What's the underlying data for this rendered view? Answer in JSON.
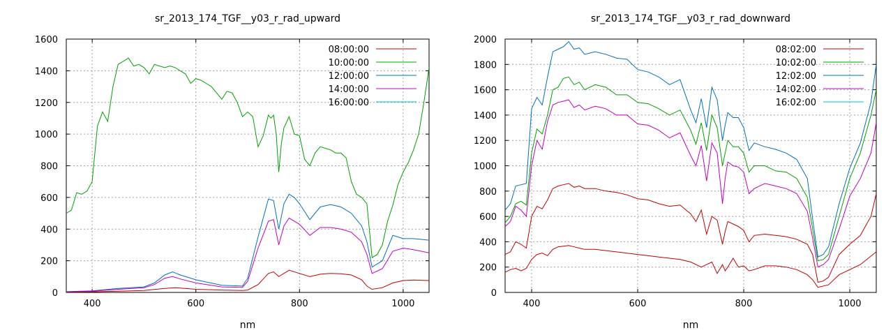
{
  "chart_data": [
    {
      "type": "line",
      "title": "sr_2013_174_TGF__y03_r_rad_upward",
      "xlabel": "nm",
      "ylabel": "",
      "xlim": [
        350,
        1050
      ],
      "ylim": [
        0,
        1600
      ],
      "xticks": [
        400,
        600,
        800,
        1000
      ],
      "yticks": [
        0,
        200,
        400,
        600,
        800,
        1000,
        1200,
        1400,
        1600
      ],
      "grid": true,
      "legend": "top-right",
      "series": [
        {
          "name": "08:00:00",
          "color": "#c00000",
          "x": [
            350,
            400,
            450,
            500,
            540,
            560,
            600,
            650,
            690,
            700,
            720,
            740,
            750,
            760,
            780,
            800,
            820,
            840,
            860,
            880,
            900,
            920,
            930,
            940,
            960,
            980,
            1000,
            1020,
            1050
          ],
          "y": [
            3,
            4,
            8,
            12,
            25,
            30,
            20,
            15,
            12,
            15,
            50,
            120,
            130,
            100,
            140,
            120,
            100,
            115,
            120,
            118,
            110,
            80,
            40,
            20,
            30,
            60,
            75,
            78,
            75
          ]
        },
        {
          "name": "10:00:00",
          "color": "#00a000",
          "x": [
            350,
            360,
            370,
            380,
            390,
            400,
            410,
            420,
            430,
            440,
            450,
            460,
            470,
            480,
            490,
            500,
            510,
            520,
            530,
            540,
            550,
            560,
            570,
            580,
            590,
            600,
            610,
            620,
            630,
            640,
            650,
            660,
            670,
            680,
            690,
            700,
            710,
            720,
            730,
            740,
            745,
            750,
            755,
            760,
            765,
            770,
            780,
            790,
            800,
            810,
            820,
            830,
            840,
            850,
            860,
            870,
            880,
            890,
            900,
            910,
            920,
            930,
            940,
            950,
            960,
            970,
            980,
            990,
            1000,
            1010,
            1020,
            1030,
            1040,
            1050
          ],
          "y": [
            500,
            520,
            630,
            620,
            640,
            700,
            1050,
            1140,
            1080,
            1300,
            1440,
            1460,
            1480,
            1430,
            1440,
            1420,
            1380,
            1440,
            1430,
            1420,
            1430,
            1420,
            1400,
            1380,
            1320,
            1350,
            1340,
            1320,
            1300,
            1260,
            1220,
            1270,
            1260,
            1200,
            1110,
            1140,
            1110,
            920,
            990,
            1120,
            1100,
            1120,
            1000,
            760,
            940,
            1040,
            1110,
            1000,
            990,
            840,
            800,
            880,
            920,
            910,
            900,
            880,
            880,
            850,
            700,
            620,
            600,
            560,
            220,
            240,
            300,
            450,
            550,
            680,
            760,
            820,
            900,
            1000,
            1200,
            1420
          ]
        },
        {
          "name": "12:00:00",
          "color": "#0070c0",
          "x": [
            350,
            400,
            450,
            500,
            520,
            540,
            555,
            570,
            600,
            650,
            690,
            700,
            720,
            740,
            750,
            760,
            770,
            780,
            790,
            800,
            820,
            840,
            860,
            880,
            900,
            920,
            930,
            940,
            960,
            980,
            1000,
            1020,
            1050
          ],
          "y": [
            5,
            10,
            25,
            35,
            60,
            110,
            130,
            110,
            80,
            45,
            40,
            90,
            350,
            590,
            580,
            400,
            560,
            620,
            600,
            560,
            460,
            540,
            555,
            540,
            500,
            420,
            320,
            160,
            200,
            360,
            340,
            340,
            330
          ]
        },
        {
          "name": "14:00:00",
          "color": "#c000c0",
          "x": [
            350,
            400,
            450,
            500,
            520,
            540,
            555,
            570,
            600,
            650,
            690,
            700,
            720,
            740,
            750,
            760,
            770,
            780,
            790,
            800,
            820,
            840,
            860,
            880,
            900,
            920,
            930,
            940,
            960,
            980,
            1000,
            1020,
            1050
          ],
          "y": [
            4,
            8,
            20,
            30,
            50,
            90,
            100,
            85,
            60,
            35,
            32,
            70,
            280,
            450,
            460,
            300,
            420,
            470,
            450,
            430,
            360,
            410,
            410,
            400,
            380,
            320,
            240,
            120,
            150,
            260,
            280,
            270,
            250
          ]
        },
        {
          "name": "16:00:00",
          "color": "#00c0c0",
          "x": [],
          "y": []
        }
      ]
    },
    {
      "type": "line",
      "title": "sr_2013_174_TGF__y03_r_rad_downward",
      "xlabel": "nm",
      "ylabel": "",
      "xlim": [
        350,
        1050
      ],
      "ylim": [
        0,
        2000
      ],
      "xticks": [
        400,
        600,
        800,
        1000
      ],
      "yticks": [
        0,
        200,
        400,
        600,
        800,
        1000,
        1200,
        1400,
        1600,
        1800,
        2000
      ],
      "grid": true,
      "legend": "top-right",
      "series": [
        {
          "name": "08:02:00",
          "color": "#c00000",
          "x": [
            350,
            360,
            370,
            380,
            390,
            400,
            410,
            420,
            430,
            440,
            450,
            460,
            470,
            480,
            490,
            500,
            520,
            540,
            560,
            580,
            600,
            620,
            640,
            660,
            680,
            700,
            720,
            740,
            750,
            760,
            765,
            770,
            780,
            790,
            800,
            810,
            820,
            840,
            860,
            880,
            900,
            920,
            930,
            940,
            960,
            980,
            1000,
            1020,
            1050
          ],
          "y": [
            160,
            180,
            190,
            170,
            190,
            260,
            300,
            310,
            290,
            340,
            360,
            365,
            370,
            360,
            350,
            340,
            340,
            330,
            320,
            310,
            300,
            290,
            280,
            270,
            260,
            240,
            200,
            240,
            150,
            220,
            170,
            200,
            270,
            200,
            210,
            170,
            180,
            210,
            210,
            200,
            180,
            140,
            100,
            40,
            60,
            140,
            180,
            220,
            320
          ]
        },
        {
          "name": "10:02:00",
          "color": "#00a000",
          "x": [
            350,
            360,
            370,
            380,
            390,
            400,
            410,
            420,
            430,
            440,
            450,
            460,
            470,
            480,
            490,
            500,
            520,
            540,
            560,
            580,
            600,
            620,
            640,
            660,
            680,
            700,
            710,
            720,
            730,
            740,
            750,
            760,
            765,
            770,
            780,
            790,
            800,
            810,
            820,
            840,
            860,
            880,
            900,
            920,
            930,
            940,
            950,
            960,
            980,
            1000,
            1020,
            1040,
            1050
          ],
          "y": [
            550,
            600,
            700,
            720,
            690,
            1100,
            1290,
            1250,
            1400,
            1600,
            1620,
            1690,
            1700,
            1640,
            1660,
            1600,
            1640,
            1620,
            1560,
            1560,
            1500,
            1490,
            1450,
            1400,
            1440,
            1280,
            1170,
            1340,
            1120,
            1400,
            1300,
            1000,
            1100,
            1200,
            1150,
            1150,
            1100,
            950,
            1000,
            1000,
            960,
            950,
            900,
            750,
            500,
            250,
            260,
            300,
            600,
            900,
            1100,
            1400,
            1600
          ]
        },
        {
          "name": "12:02:00",
          "color": "#0070c0",
          "x": [
            350,
            360,
            370,
            380,
            390,
            400,
            410,
            420,
            430,
            440,
            450,
            460,
            470,
            480,
            490,
            500,
            520,
            540,
            560,
            580,
            600,
            620,
            640,
            660,
            680,
            700,
            710,
            720,
            730,
            740,
            750,
            760,
            765,
            770,
            780,
            790,
            800,
            810,
            820,
            840,
            860,
            880,
            900,
            920,
            930,
            940,
            950,
            960,
            980,
            1000,
            1020,
            1040,
            1050
          ],
          "y": [
            650,
            700,
            840,
            850,
            860,
            1450,
            1540,
            1480,
            1700,
            1900,
            1920,
            1940,
            1980,
            1920,
            1930,
            1880,
            1900,
            1880,
            1850,
            1840,
            1760,
            1740,
            1700,
            1640,
            1680,
            1440,
            1340,
            1530,
            1300,
            1620,
            1520,
            1200,
            1320,
            1420,
            1380,
            1380,
            1300,
            1120,
            1180,
            1150,
            1130,
            1100,
            1050,
            900,
            580,
            280,
            300,
            360,
            700,
            980,
            1180,
            1500,
            1800
          ]
        },
        {
          "name": "14:02:00",
          "color": "#c000c0",
          "x": [
            350,
            360,
            370,
            380,
            390,
            400,
            410,
            420,
            430,
            440,
            450,
            460,
            470,
            480,
            490,
            500,
            520,
            540,
            560,
            580,
            600,
            620,
            640,
            660,
            680,
            700,
            710,
            720,
            730,
            740,
            750,
            760,
            765,
            770,
            780,
            790,
            800,
            810,
            820,
            840,
            860,
            880,
            900,
            920,
            930,
            940,
            950,
            960,
            980,
            1000,
            1020,
            1040,
            1050
          ],
          "y": [
            520,
            560,
            680,
            650,
            600,
            1000,
            1200,
            1130,
            1350,
            1480,
            1500,
            1510,
            1520,
            1460,
            1480,
            1440,
            1470,
            1450,
            1400,
            1400,
            1330,
            1320,
            1280,
            1220,
            1260,
            1080,
            1000,
            1160,
            880,
            1180,
            1100,
            700,
            900,
            1030,
            1000,
            990,
            950,
            780,
            820,
            860,
            840,
            820,
            780,
            640,
            430,
            200,
            220,
            260,
            500,
            760,
            900,
            1100,
            1340
          ]
        },
        {
          "name": "16:02:00",
          "color": "#00c0c0",
          "x": [],
          "y": []
        },
        {
          "name": "",
          "color": "#c00000",
          "x": [
            350,
            360,
            370,
            380,
            390,
            400,
            410,
            420,
            430,
            440,
            450,
            460,
            470,
            480,
            490,
            500,
            520,
            540,
            560,
            580,
            600,
            620,
            640,
            660,
            680,
            700,
            710,
            720,
            730,
            740,
            750,
            760,
            765,
            770,
            780,
            790,
            800,
            810,
            820,
            840,
            860,
            880,
            900,
            920,
            930,
            940,
            950,
            960,
            980,
            1000,
            1020,
            1040,
            1050
          ],
          "y": [
            300,
            320,
            400,
            380,
            350,
            600,
            680,
            660,
            730,
            820,
            840,
            850,
            860,
            830,
            840,
            820,
            820,
            800,
            790,
            770,
            740,
            730,
            700,
            680,
            690,
            620,
            560,
            650,
            460,
            600,
            570,
            380,
            480,
            560,
            540,
            520,
            490,
            400,
            450,
            460,
            450,
            440,
            420,
            380,
            300,
            80,
            90,
            120,
            300,
            380,
            450,
            600,
            780
          ]
        }
      ]
    }
  ]
}
